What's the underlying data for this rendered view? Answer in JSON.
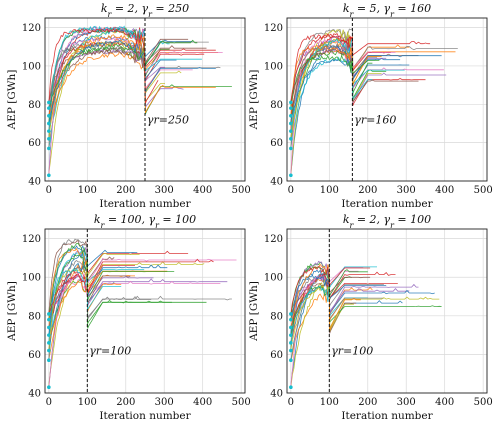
{
  "chart_data": [
    {
      "type": "line",
      "title": "k_r = 2, γ_r = 250",
      "title_parts": {
        "k_value": "2",
        "g_value": "250"
      },
      "xlabel": "Iteration number",
      "ylabel": "AEP [GWh]",
      "xlim": [
        -10,
        510
      ],
      "ylim": [
        40,
        125
      ],
      "xticks": [
        0,
        100,
        200,
        300,
        400,
        500
      ],
      "yticks": [
        40,
        60,
        80,
        100,
        120
      ],
      "grid": true,
      "restart_iteration": 250,
      "annotation": "γr=250",
      "annotation_pos": [
        255,
        70
      ],
      "peak_range": [
        104,
        120
      ],
      "post_range": [
        88,
        114
      ],
      "post_len_range": [
        20,
        230
      ],
      "series_count": 24,
      "start_points": [
        43,
        57,
        62,
        66,
        70,
        74,
        78,
        81
      ]
    },
    {
      "type": "line",
      "title": "k_r = 5, γ_r = 160",
      "title_parts": {
        "k_value": "5",
        "g_value": "160"
      },
      "xlabel": "Iteration number",
      "ylabel": "AEP [GWh]",
      "xlim": [
        -10,
        510
      ],
      "ylim": [
        40,
        125
      ],
      "xticks": [
        0,
        100,
        200,
        300,
        400,
        500
      ],
      "yticks": [
        40,
        60,
        80,
        100,
        120
      ],
      "grid": true,
      "restart_iteration": 160,
      "annotation": "γr=160",
      "annotation_pos": [
        165,
        70
      ],
      "peak_range": [
        104,
        120
      ],
      "post_range": [
        92,
        114
      ],
      "post_len_range": [
        40,
        290
      ],
      "series_count": 24,
      "start_points": [
        43,
        57,
        62,
        66,
        70,
        74,
        78,
        81
      ]
    },
    {
      "type": "line",
      "title": "k_r = 100, γ_r = 100",
      "title_parts": {
        "k_value": "100",
        "g_value": "100"
      },
      "xlabel": "Iteration number",
      "ylabel": "AEP [GWh]",
      "xlim": [
        -10,
        510
      ],
      "ylim": [
        40,
        125
      ],
      "xticks": [
        0,
        100,
        200,
        300,
        400,
        500
      ],
      "yticks": [
        40,
        60,
        80,
        100,
        120
      ],
      "grid": true,
      "restart_iteration": 100,
      "annotation": "γr=100",
      "annotation_pos": [
        105,
        60
      ],
      "peak_range": [
        100,
        120
      ],
      "post_range": [
        86,
        113
      ],
      "post_len_range": [
        60,
        390
      ],
      "series_count": 24,
      "start_points": [
        43,
        57,
        62,
        66,
        70,
        74,
        78,
        81
      ]
    },
    {
      "type": "line",
      "title": "k_r = 2, γ_r = 100",
      "title_parts": {
        "k_value": "2",
        "g_value": "100"
      },
      "xlabel": "Iteration number",
      "ylabel": "AEP [GWh]",
      "xlim": [
        -10,
        510
      ],
      "ylim": [
        40,
        125
      ],
      "xticks": [
        0,
        100,
        200,
        300,
        400,
        500
      ],
      "yticks": [
        40,
        60,
        80,
        100,
        120
      ],
      "grid": true,
      "restart_iteration": 100,
      "annotation": "γr=100",
      "annotation_pos": [
        105,
        60
      ],
      "peak_range": [
        96,
        112
      ],
      "post_range": [
        84,
        106
      ],
      "post_len_range": [
        40,
        300
      ],
      "series_count": 24,
      "start_points": [
        43,
        57,
        62,
        66,
        70,
        74,
        78,
        81
      ]
    }
  ],
  "colors": [
    "#1f77b4",
    "#ff7f0e",
    "#2ca02c",
    "#d62728",
    "#9467bd",
    "#8c564b",
    "#e377c2",
    "#7f7f7f",
    "#bcbd22",
    "#17becf"
  ],
  "start_point_color": "#17becf",
  "vline_color": "#111111"
}
